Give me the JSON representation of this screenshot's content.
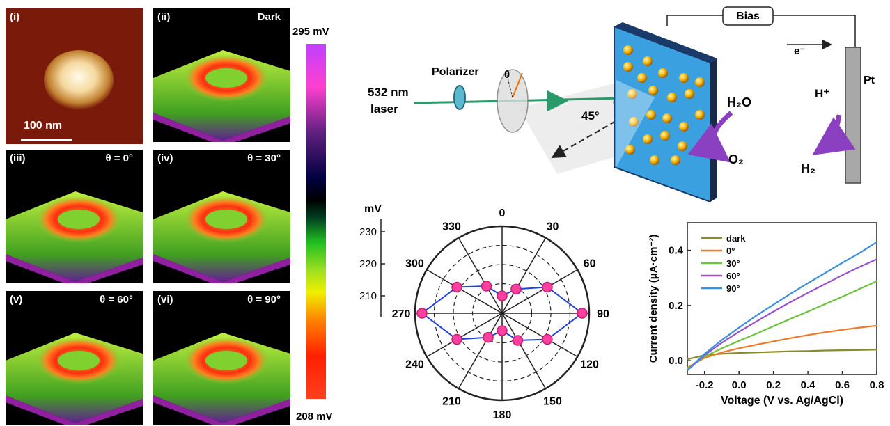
{
  "panels": [
    {
      "id": "i",
      "label": "(i)",
      "condition": "",
      "scalebar": "100 nm"
    },
    {
      "id": "ii",
      "label": "(ii)",
      "condition": "Dark"
    },
    {
      "id": "iii",
      "label": "(iii)",
      "condition": "θ = 0°"
    },
    {
      "id": "iv",
      "label": "(iv)",
      "condition": "θ = 30°"
    },
    {
      "id": "v",
      "label": "(v)",
      "condition": "θ = 60°"
    },
    {
      "id": "vi",
      "label": "(vi)",
      "condition": "θ = 90°"
    }
  ],
  "colorbar": {
    "max": "295 mV",
    "min": "208 mV"
  },
  "schematic": {
    "bias": "Bias",
    "laser_line1": "532 nm",
    "laser_line2": "laser",
    "polarizer": "Polarizer",
    "theta": "θ",
    "angle": "45°",
    "electron": "e⁻",
    "electrode": "Pt",
    "h2o": "H₂O",
    "o2": "O₂",
    "hplus": "H⁺",
    "h2": "H₂"
  },
  "chart_data": [
    {
      "type": "polar",
      "r_unit": "mV",
      "r_ticks": [
        "230",
        "220",
        "210"
      ],
      "r_range": [
        205,
        230
      ],
      "angle_labels": [
        "0",
        "30",
        "60",
        "90",
        "120",
        "150",
        "180",
        "210",
        "240",
        "270",
        "300",
        "330"
      ],
      "points": [
        {
          "angle": 0,
          "value": 210
        },
        {
          "angle": 30,
          "value": 213
        },
        {
          "angle": 60,
          "value": 220
        },
        {
          "angle": 90,
          "value": 228
        },
        {
          "angle": 120,
          "value": 220
        },
        {
          "angle": 150,
          "value": 214
        },
        {
          "angle": 180,
          "value": 210
        },
        {
          "angle": 210,
          "value": 213
        },
        {
          "angle": 240,
          "value": 220
        },
        {
          "angle": 270,
          "value": 228
        },
        {
          "angle": 300,
          "value": 220
        },
        {
          "angle": 330,
          "value": 214
        }
      ]
    },
    {
      "type": "line",
      "xlabel": "Voltage (V vs. Ag/AgCl)",
      "ylabel": "Current density (μA·cm⁻²)",
      "xlim": [
        -0.3,
        0.8
      ],
      "ylim": [
        -0.05,
        0.5
      ],
      "xticks": [
        "-0.2",
        "0.0",
        "0.2",
        "0.4",
        "0.6",
        "0.8"
      ],
      "yticks": [
        "0.0",
        "0.2",
        "0.4"
      ],
      "legend_position": "top-left",
      "x": [
        -0.3,
        -0.2,
        -0.1,
        0.0,
        0.1,
        0.2,
        0.3,
        0.4,
        0.5,
        0.6,
        0.7,
        0.8
      ],
      "series": [
        {
          "name": "dark",
          "color": "#8a8a2a",
          "values": [
            0.005,
            0.02,
            0.025,
            0.028,
            0.03,
            0.032,
            0.034,
            0.035,
            0.037,
            0.038,
            0.039,
            0.04
          ]
        },
        {
          "name": "0°",
          "color": "#f07a2a",
          "values": [
            -0.025,
            0.01,
            0.03,
            0.045,
            0.058,
            0.07,
            0.082,
            0.093,
            0.103,
            0.112,
            0.12,
            0.127
          ]
        },
        {
          "name": "30°",
          "color": "#6cc23a",
          "values": [
            -0.03,
            0.015,
            0.045,
            0.072,
            0.098,
            0.125,
            0.152,
            0.178,
            0.205,
            0.232,
            0.26,
            0.288
          ]
        },
        {
          "name": "60°",
          "color": "#9a50d0",
          "values": [
            -0.035,
            0.02,
            0.065,
            0.105,
            0.142,
            0.178,
            0.213,
            0.246,
            0.278,
            0.31,
            0.34,
            0.368
          ]
        },
        {
          "name": "90°",
          "color": "#3a8ee0",
          "values": [
            -0.035,
            0.025,
            0.075,
            0.12,
            0.163,
            0.203,
            0.243,
            0.281,
            0.318,
            0.355,
            0.39,
            0.43
          ]
        }
      ]
    }
  ]
}
